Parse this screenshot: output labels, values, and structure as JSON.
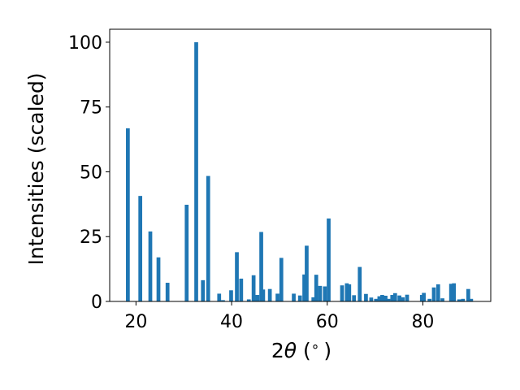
{
  "chart_data": {
    "type": "bar",
    "title": "",
    "xlabel": {
      "prefix": "2",
      "symbol": "θ",
      "suffix": " (",
      "unit_degree": "∘",
      "close": ")"
    },
    "ylabel": "Intensities (scaled)",
    "xlim": [
      14.5,
      94.2
    ],
    "ylim": [
      0,
      105
    ],
    "xticks": [
      20,
      40,
      60,
      80
    ],
    "xtick_labels": [
      "20",
      "40",
      "60",
      "80"
    ],
    "yticks": [
      0,
      25,
      50,
      75,
      100
    ],
    "ytick_labels": [
      "0",
      "25",
      "50",
      "75",
      "100"
    ],
    "grid": false,
    "bar_width": 0.8,
    "color": "#1f77b4",
    "x": [
      18.3,
      20.9,
      23.0,
      24.7,
      26.6,
      30.6,
      32.6,
      34.0,
      35.1,
      37.4,
      38.2,
      39.9,
      41.1,
      42.0,
      43.6,
      44.6,
      45.4,
      46.2,
      46.6,
      48.0,
      49.6,
      50.4,
      53.0,
      54.3,
      55.2,
      55.7,
      57.1,
      57.7,
      58.5,
      59.5,
      60.3,
      63.1,
      64.1,
      64.6,
      65.6,
      66.8,
      68.1,
      69.2,
      70.2,
      70.9,
      71.5,
      72.2,
      72.8,
      73.6,
      74.2,
      75.1,
      75.8,
      76.7,
      79.8,
      80.2,
      81.4,
      82.3,
      83.2,
      84.1,
      85.9,
      86.5,
      87.6,
      88.4,
      89.5,
      90.1
    ],
    "values": [
      66.8,
      40.7,
      27.0,
      17.0,
      7.2,
      37.3,
      100.0,
      8.2,
      48.4,
      3.0,
      0.5,
      4.3,
      19.0,
      8.8,
      0.8,
      10.1,
      2.5,
      26.8,
      4.6,
      4.8,
      3.0,
      16.8,
      3.0,
      2.3,
      10.4,
      21.5,
      1.6,
      10.3,
      6.0,
      5.8,
      32.0,
      6.2,
      7.0,
      6.6,
      2.4,
      13.3,
      2.9,
      1.5,
      1.0,
      2.0,
      2.5,
      2.2,
      1.0,
      2.5,
      3.2,
      2.3,
      1.6,
      2.6,
      2.5,
      3.3,
      1.0,
      5.4,
      6.6,
      1.2,
      6.8,
      7.0,
      0.8,
      1.0,
      4.8,
      1.0
    ]
  }
}
